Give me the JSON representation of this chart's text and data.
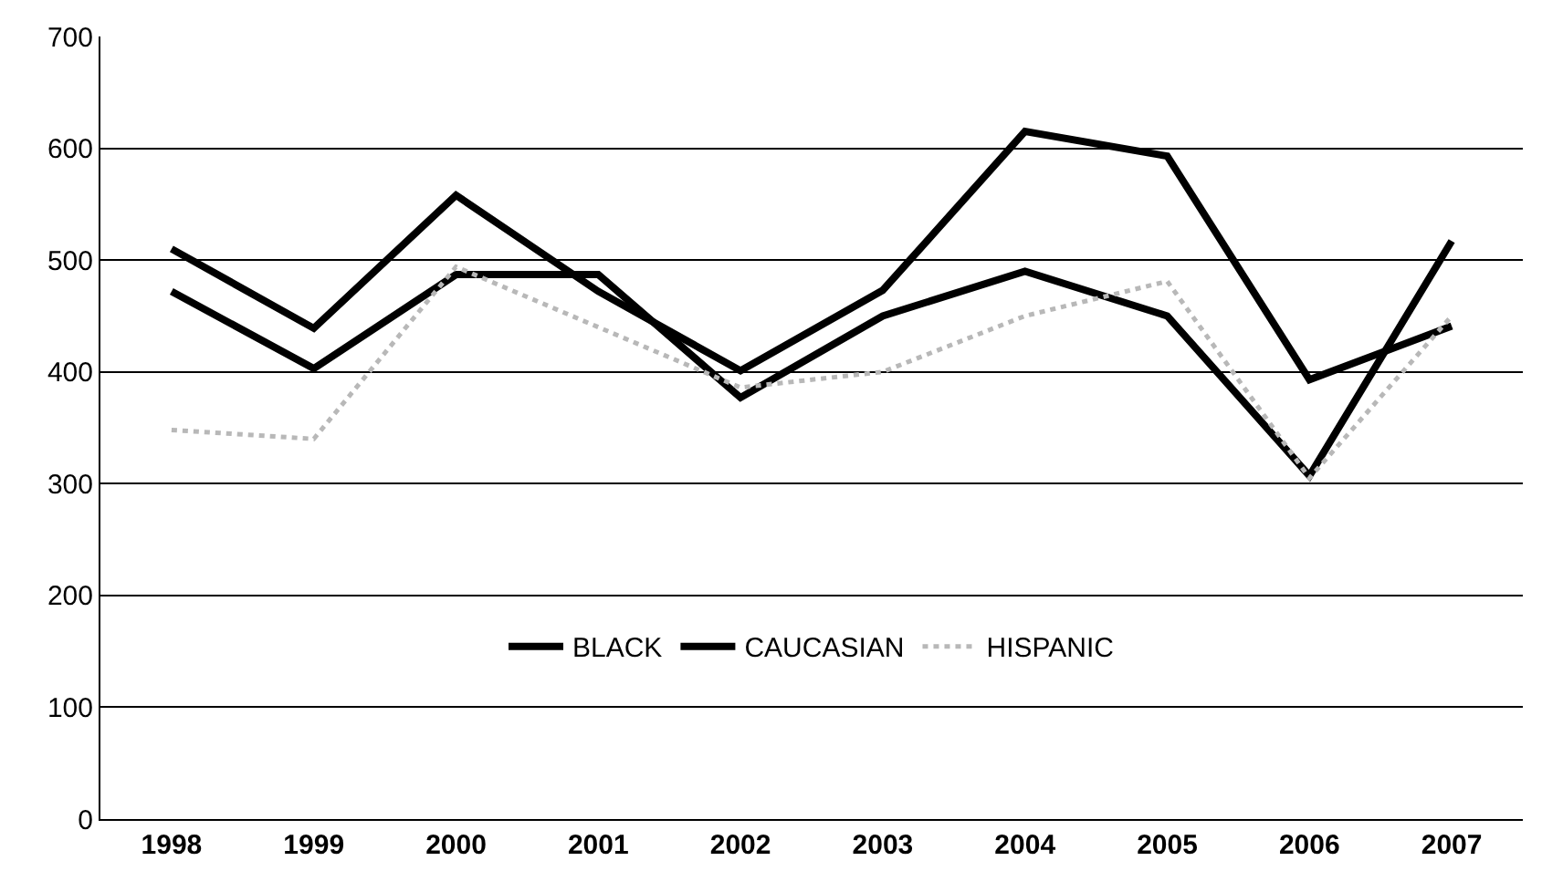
{
  "chart_data": {
    "type": "line",
    "categories": [
      "1998",
      "1999",
      "2000",
      "2001",
      "2002",
      "2003",
      "2004",
      "2005",
      "2006",
      "2007"
    ],
    "series": [
      {
        "name": "BLACK",
        "color": "#000000",
        "values": [
          510,
          439,
          558,
          472,
          401,
          473,
          615,
          593,
          393,
          441
        ]
      },
      {
        "name": "CAUCASIAN",
        "color": "#000000",
        "values": [
          472,
          403,
          487,
          487,
          377,
          450,
          490,
          450,
          307,
          517
        ]
      },
      {
        "name": "HISPANIC",
        "color": "#b8b8b8",
        "line_style": "dotted",
        "values": [
          348,
          340,
          494,
          440,
          386,
          400,
          450,
          481,
          305,
          450
        ]
      }
    ],
    "ylim": [
      0,
      700
    ],
    "yticks": [
      0,
      100,
      200,
      300,
      400,
      500,
      600,
      700
    ],
    "grid": "y",
    "legend": "bottom",
    "marker": "none"
  }
}
